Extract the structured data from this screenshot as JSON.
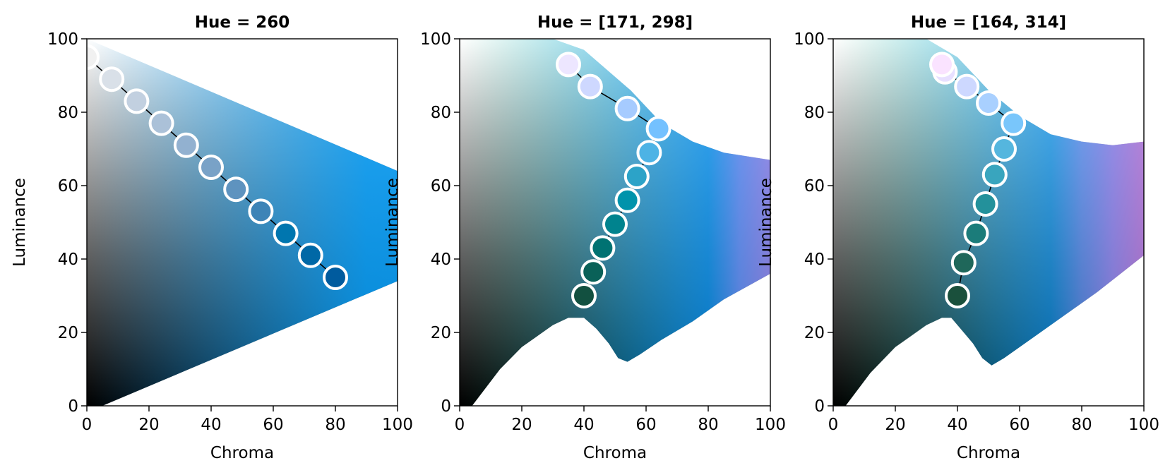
{
  "chart_data": [
    {
      "type": "scatter",
      "title": "Hue = 260",
      "xlabel": "Chroma",
      "ylabel": "Luminance",
      "xlim": [
        0,
        100
      ],
      "ylim": [
        0,
        100
      ],
      "xticks": [
        "0",
        "20",
        "40",
        "60",
        "80",
        "100"
      ],
      "yticks": [
        "0",
        "20",
        "40",
        "60",
        "80",
        "100"
      ],
      "grid": false,
      "hue": [
        260
      ],
      "region": {
        "upper": [
          [
            0,
            100
          ],
          [
            100,
            64
          ]
        ],
        "lower": [
          [
            0,
            0
          ],
          [
            5,
            0
          ],
          [
            100,
            34
          ]
        ]
      },
      "series": [
        {
          "x": [
            0,
            8,
            16,
            24,
            32,
            40,
            48,
            56,
            64,
            72,
            80
          ],
          "y": [
            95,
            89,
            83,
            77,
            71,
            65,
            59,
            53,
            47,
            41,
            35
          ]
        }
      ]
    },
    {
      "type": "scatter",
      "title": "Hue = [171, 298]",
      "xlabel": "Chroma",
      "ylabel": "Luminance",
      "xlim": [
        0,
        100
      ],
      "ylim": [
        0,
        100
      ],
      "xticks": [
        "0",
        "20",
        "40",
        "60",
        "80",
        "100"
      ],
      "yticks": [
        "0",
        "20",
        "40",
        "60",
        "80",
        "100"
      ],
      "grid": false,
      "hue": [
        171,
        298
      ],
      "region": {
        "upper": [
          [
            0,
            100
          ],
          [
            30,
            100
          ],
          [
            40,
            97
          ],
          [
            55,
            86
          ],
          [
            65,
            77
          ],
          [
            75,
            72
          ],
          [
            85,
            69
          ],
          [
            100,
            67
          ]
        ],
        "lower": [
          [
            0,
            0
          ],
          [
            4,
            0
          ],
          [
            13,
            10
          ],
          [
            20,
            16
          ],
          [
            25,
            19
          ],
          [
            30,
            22
          ],
          [
            35,
            24
          ],
          [
            40,
            24
          ],
          [
            44,
            21
          ],
          [
            48,
            17
          ],
          [
            51,
            13
          ],
          [
            54,
            12
          ],
          [
            58,
            14
          ],
          [
            65,
            18
          ],
          [
            75,
            23
          ],
          [
            85,
            29
          ],
          [
            100,
            36
          ]
        ]
      },
      "series": [
        {
          "x": [
            40,
            43,
            46,
            50,
            54,
            57,
            61,
            64,
            54,
            42,
            35
          ],
          "y": [
            30,
            36.5,
            43,
            49.5,
            56,
            62.5,
            69,
            75.5,
            81,
            87,
            93
          ]
        }
      ]
    },
    {
      "type": "scatter",
      "title": "Hue = [164, 314]",
      "xlabel": "Chroma",
      "ylabel": "Luminance",
      "xlim": [
        0,
        100
      ],
      "ylim": [
        0,
        100
      ],
      "xticks": [
        "0",
        "20",
        "40",
        "60",
        "80",
        "100"
      ],
      "yticks": [
        "0",
        "20",
        "40",
        "60",
        "80",
        "100"
      ],
      "grid": false,
      "hue": [
        164,
        314
      ],
      "region": {
        "upper": [
          [
            0,
            100
          ],
          [
            30,
            100
          ],
          [
            40,
            95
          ],
          [
            50,
            86
          ],
          [
            60,
            79
          ],
          [
            70,
            74
          ],
          [
            80,
            72
          ],
          [
            90,
            71
          ],
          [
            100,
            72
          ]
        ],
        "lower": [
          [
            0,
            0
          ],
          [
            4,
            0
          ],
          [
            12,
            9
          ],
          [
            20,
            16
          ],
          [
            25,
            19
          ],
          [
            30,
            22
          ],
          [
            35,
            24
          ],
          [
            38,
            24
          ],
          [
            41,
            21
          ],
          [
            45,
            17
          ],
          [
            48,
            13
          ],
          [
            51,
            11
          ],
          [
            55,
            13
          ],
          [
            65,
            19
          ],
          [
            75,
            25
          ],
          [
            85,
            31
          ],
          [
            100,
            41
          ]
        ]
      },
      "series": [
        {
          "x": [
            40,
            42,
            46,
            49,
            52,
            55,
            58,
            50,
            43,
            36,
            35
          ],
          "y": [
            30,
            39,
            47,
            55,
            63,
            70,
            77,
            82.5,
            87,
            91,
            93
          ]
        }
      ]
    }
  ]
}
